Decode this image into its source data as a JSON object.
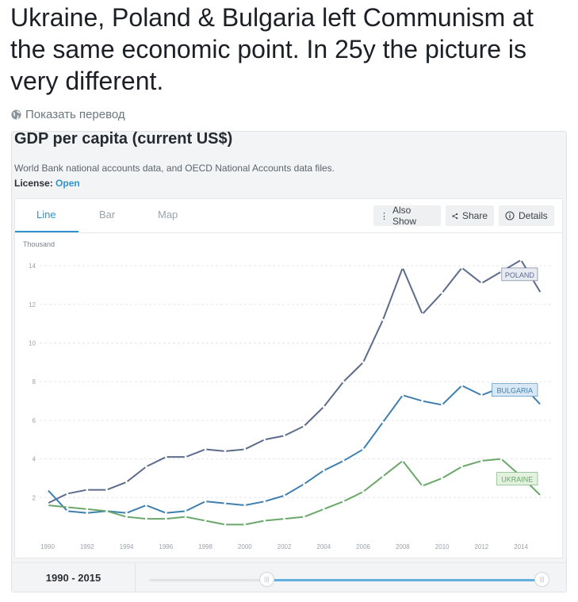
{
  "tweet": {
    "text": "Ukraine, Poland & Bulgaria left Communism at the same economic point. In 25y the picture is very different.",
    "translate_label": "Показать перевод"
  },
  "card": {
    "title": "GDP per capita (current US$)",
    "source": "World Bank national accounts data, and OECD National Accounts data files.",
    "license_label": "License:",
    "license_link": "Open"
  },
  "tabs": [
    {
      "label": "Line",
      "active": true
    },
    {
      "label": "Bar",
      "active": false
    },
    {
      "label": "Map",
      "active": false
    }
  ],
  "toolbar": {
    "also_show": "Also Show",
    "share": "Share",
    "details": "Details"
  },
  "footer": {
    "range": "1990 - 2015",
    "slider_start_fraction": 0.3,
    "slider_end_fraction": 1.0
  },
  "colors": {
    "poland": "#5d6b8c",
    "bulgaria": "#3f7fb0",
    "ukraine": "#6aa86a",
    "accent": "#2f93d1"
  },
  "chart_data": {
    "type": "line",
    "unit_label": "Thousand",
    "x": [
      1990,
      1991,
      1992,
      1993,
      1994,
      1995,
      1996,
      1997,
      1998,
      1999,
      2000,
      2001,
      2002,
      2003,
      2004,
      2005,
      2006,
      2007,
      2008,
      2009,
      2010,
      2011,
      2012,
      2013,
      2014,
      2015
    ],
    "xticks": [
      "1990",
      "1992",
      "1994",
      "1996",
      "1998",
      "2000",
      "2002",
      "2004",
      "2006",
      "2008",
      "2010",
      "2012",
      "2014"
    ],
    "yticks": [
      "2",
      "4",
      "6",
      "8",
      "10",
      "12",
      "14"
    ],
    "ylim": [
      0,
      14.5
    ],
    "grid": true,
    "series": [
      {
        "name": "POLAND",
        "key": "poland",
        "values": [
          1.7,
          2.2,
          2.4,
          2.4,
          2.8,
          3.6,
          4.1,
          4.1,
          4.5,
          4.4,
          4.5,
          5.0,
          5.2,
          5.7,
          6.7,
          8.0,
          9.0,
          11.2,
          13.9,
          11.5,
          12.6,
          13.9,
          13.1,
          13.7,
          14.3,
          12.6
        ]
      },
      {
        "name": "BULGARIA",
        "key": "bulgaria",
        "values": [
          2.4,
          1.3,
          1.2,
          1.3,
          1.2,
          1.6,
          1.2,
          1.3,
          1.8,
          1.7,
          1.6,
          1.8,
          2.1,
          2.7,
          3.4,
          3.9,
          4.5,
          5.9,
          7.3,
          7.0,
          6.8,
          7.8,
          7.3,
          7.7,
          7.9,
          6.8
        ]
      },
      {
        "name": "UKRAINE",
        "key": "ukraine",
        "values": [
          1.6,
          1.5,
          1.4,
          1.3,
          1.0,
          0.9,
          0.9,
          1.0,
          0.8,
          0.6,
          0.6,
          0.8,
          0.9,
          1.0,
          1.4,
          1.8,
          2.3,
          3.1,
          3.9,
          2.6,
          3.0,
          3.6,
          3.9,
          4.0,
          3.1,
          2.1
        ]
      }
    ]
  }
}
